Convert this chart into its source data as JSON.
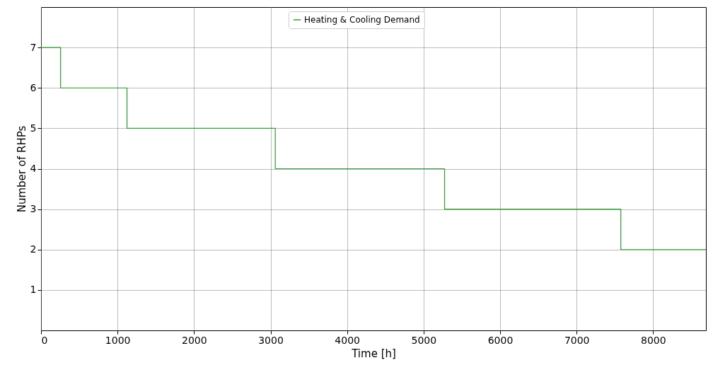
{
  "chart_data": {
    "type": "step",
    "xlabel": "Time [h]",
    "ylabel": "Number of RHPs",
    "x": [
      0,
      256,
      1124,
      3062,
      5274,
      7578,
      8690
    ],
    "series": [
      {
        "name": "Heating & Cooling Demand",
        "color": "#2ca02c",
        "values": [
          7,
          6,
          5,
          4,
          3,
          2,
          2
        ]
      }
    ],
    "xlim": [
      0,
      8690
    ],
    "xticks": [
      0,
      1000,
      2000,
      3000,
      4000,
      5000,
      6000,
      7000,
      8000
    ],
    "ylim": [
      0,
      8
    ],
    "yticks": [
      1,
      2,
      3,
      4,
      5,
      6,
      7
    ],
    "grid": true,
    "legend": "top",
    "line_style": "solid",
    "marker": "none"
  }
}
